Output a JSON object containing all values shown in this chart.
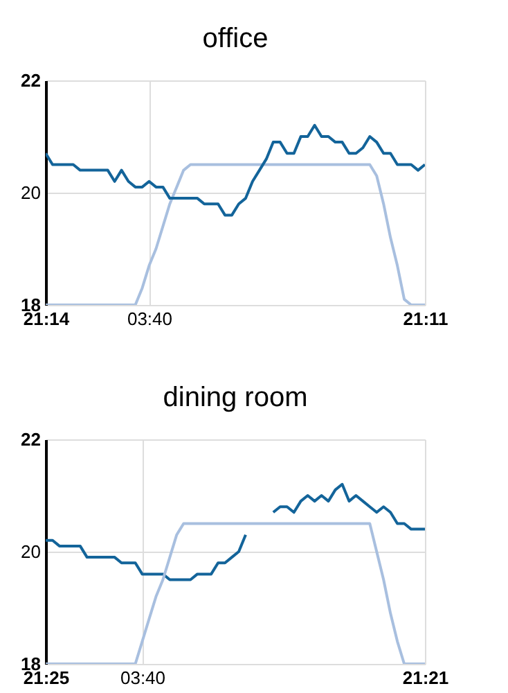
{
  "chart_data": [
    {
      "type": "line",
      "title": "office",
      "categories": [
        "21:14",
        null,
        null,
        null,
        null,
        null,
        null,
        null,
        null,
        null,
        null,
        null,
        null,
        null,
        null,
        "03:40",
        null,
        null,
        null,
        null,
        null,
        null,
        null,
        null,
        null,
        null,
        null,
        null,
        null,
        null,
        null,
        null,
        null,
        null,
        null,
        null,
        null,
        null,
        null,
        null,
        null,
        null,
        null,
        null,
        null,
        null,
        null,
        null,
        null,
        null,
        null,
        null,
        null,
        null,
        null,
        "21:11"
      ],
      "ylim": [
        18,
        22
      ],
      "yticks": [
        18,
        20,
        22
      ],
      "grid": true,
      "series": [
        {
          "color": "#a8bfdf",
          "values": [
            18,
            18,
            18,
            18,
            18,
            18,
            18,
            18,
            18,
            18,
            18,
            18,
            18,
            18,
            18.3,
            18.7,
            19.0,
            19.4,
            19.8,
            20.1,
            20.4,
            20.5,
            20.5,
            20.5,
            20.5,
            20.5,
            20.5,
            20.5,
            20.5,
            20.5,
            20.5,
            20.5,
            20.5,
            20.5,
            20.5,
            20.5,
            20.5,
            20.5,
            20.5,
            20.5,
            20.5,
            20.5,
            20.5,
            20.5,
            20.5,
            20.5,
            20.5,
            20.5,
            20.3,
            19.8,
            19.2,
            18.7,
            18.1,
            18,
            18,
            18
          ]
        },
        {
          "color": "#13649a",
          "values": [
            20.7,
            20.5,
            20.5,
            20.5,
            20.5,
            20.4,
            20.4,
            20.4,
            20.4,
            20.4,
            20.2,
            20.4,
            20.2,
            20.1,
            20.1,
            20.2,
            20.1,
            20.1,
            19.9,
            19.9,
            19.9,
            19.9,
            19.9,
            19.8,
            19.8,
            19.8,
            19.6,
            19.6,
            19.8,
            19.9,
            20.2,
            20.4,
            20.6,
            20.9,
            20.9,
            20.7,
            20.7,
            21.0,
            21.0,
            21.2,
            21.0,
            21.0,
            20.9,
            20.9,
            20.7,
            20.7,
            20.8,
            21.0,
            20.9,
            20.7,
            20.7,
            20.5,
            20.5,
            20.5,
            20.4,
            20.5
          ]
        }
      ]
    },
    {
      "type": "line",
      "title": "dining room",
      "categories": [
        "21:25",
        null,
        null,
        null,
        null,
        null,
        null,
        null,
        null,
        null,
        null,
        null,
        null,
        null,
        "03:40",
        null,
        null,
        null,
        null,
        null,
        null,
        null,
        null,
        null,
        null,
        null,
        null,
        null,
        null,
        null,
        null,
        null,
        null,
        null,
        null,
        null,
        null,
        null,
        null,
        null,
        null,
        null,
        null,
        null,
        null,
        null,
        null,
        null,
        null,
        null,
        null,
        null,
        null,
        null,
        null,
        "21:21"
      ],
      "ylim": [
        18,
        22
      ],
      "yticks": [
        18,
        20,
        22
      ],
      "grid": true,
      "series": [
        {
          "color": "#13649a",
          "values": [
            20.2,
            20.2,
            20.1,
            20.1,
            20.1,
            20.1,
            19.9,
            19.9,
            19.9,
            19.9,
            19.9,
            19.8,
            19.8,
            19.8,
            19.6,
            19.6,
            19.6,
            19.6,
            19.5,
            19.5,
            19.5,
            19.5,
            19.6,
            19.6,
            19.6,
            19.8,
            19.8,
            19.9,
            20.0,
            20.3,
            null,
            null,
            null,
            20.7,
            20.8,
            20.8,
            20.7,
            20.9,
            21.0,
            20.9,
            21.0,
            20.9,
            21.1,
            21.2,
            20.9,
            21.0,
            20.9,
            20.8,
            20.7,
            20.8,
            20.7,
            20.5,
            20.5,
            20.4,
            20.4,
            20.4
          ]
        },
        {
          "color": "#a8bfdf",
          "values": [
            18,
            18,
            18,
            18,
            18,
            18,
            18,
            18,
            18,
            18,
            18,
            18,
            18,
            18.0,
            18.4,
            18.8,
            19.2,
            19.5,
            19.9,
            20.3,
            20.5,
            20.5,
            20.5,
            20.5,
            20.5,
            20.5,
            20.5,
            20.5,
            20.5,
            20.5,
            20.5,
            20.5,
            20.5,
            20.5,
            20.5,
            20.5,
            20.5,
            20.5,
            20.5,
            20.5,
            20.5,
            20.5,
            20.5,
            20.5,
            20.5,
            20.5,
            20.5,
            20.5,
            20.0,
            19.5,
            18.9,
            18.4,
            18.0,
            18,
            18,
            18
          ]
        }
      ]
    }
  ]
}
